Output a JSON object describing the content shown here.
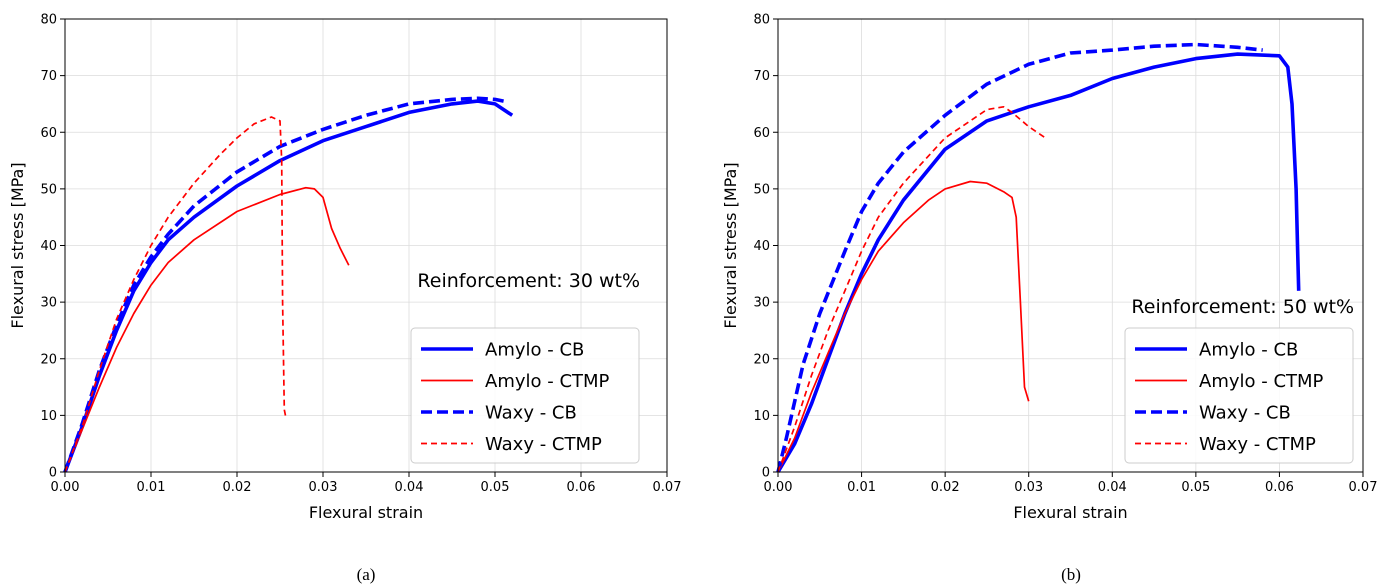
{
  "chart_data": [
    {
      "type": "line",
      "xlabel": "Flexural strain",
      "ylabel": "Flexural stress [MPa]",
      "xlim": [
        0,
        0.07
      ],
      "ylim": [
        0,
        80
      ],
      "xticks": [
        0.0,
        0.01,
        0.02,
        0.03,
        0.04,
        0.05,
        0.06,
        0.07
      ],
      "xtick_labels": [
        "0.00",
        "0.01",
        "0.02",
        "0.03",
        "0.04",
        "0.05",
        "0.06",
        "0.07"
      ],
      "yticks": [
        0,
        10,
        20,
        30,
        40,
        50,
        60,
        70,
        80
      ],
      "ytick_labels": [
        "0",
        "10",
        "20",
        "30",
        "40",
        "50",
        "60",
        "70",
        "80"
      ],
      "grid": true,
      "annotation": "Reinforcement: 30 wt%",
      "legend_position": "lower-right",
      "caption": "(a)",
      "series": [
        {
          "name": "Amylo - CB",
          "color": "#0000ff",
          "style": "solid",
          "width": "thick",
          "x": [
            0,
            0.002,
            0.004,
            0.006,
            0.008,
            0.01,
            0.012,
            0.015,
            0.02,
            0.025,
            0.03,
            0.035,
            0.04,
            0.045,
            0.048,
            0.05,
            0.052
          ],
          "y": [
            0,
            8,
            17,
            25,
            32,
            37,
            41,
            45,
            50.5,
            55,
            58.5,
            61,
            63.5,
            65,
            65.5,
            65,
            63
          ]
        },
        {
          "name": "Amylo - CTMP",
          "color": "#ff0000",
          "style": "solid",
          "width": "thin",
          "x": [
            0,
            0.002,
            0.004,
            0.006,
            0.008,
            0.01,
            0.012,
            0.015,
            0.02,
            0.025,
            0.028,
            0.029,
            0.03,
            0.031,
            0.032,
            0.033
          ],
          "y": [
            0,
            7.5,
            15,
            22,
            28,
            33,
            37,
            41,
            46,
            49,
            50.2,
            50,
            48.5,
            43,
            39.5,
            36.5
          ]
        },
        {
          "name": "Waxy - CB",
          "color": "#0000ff",
          "style": "dashed",
          "width": "thick",
          "x": [
            0,
            0.002,
            0.004,
            0.006,
            0.008,
            0.01,
            0.012,
            0.015,
            0.02,
            0.025,
            0.03,
            0.035,
            0.04,
            0.045,
            0.048,
            0.05,
            0.051
          ],
          "y": [
            0,
            8.5,
            18,
            26,
            33,
            38,
            42,
            47,
            53,
            57.5,
            60.5,
            63,
            65,
            65.8,
            66,
            65.8,
            65.5
          ]
        },
        {
          "name": "Waxy - CTMP",
          "color": "#ff0000",
          "style": "dashed",
          "width": "thin",
          "x": [
            0,
            0.002,
            0.004,
            0.006,
            0.008,
            0.01,
            0.012,
            0.015,
            0.018,
            0.02,
            0.022,
            0.024,
            0.025,
            0.0252,
            0.0253,
            0.0255,
            0.0257
          ],
          "y": [
            0,
            8,
            18,
            27,
            34,
            40,
            45,
            51,
            56,
            59,
            61.5,
            62.7,
            62,
            55,
            30,
            11,
            9.5
          ]
        }
      ]
    },
    {
      "type": "line",
      "xlabel": "Flexural strain",
      "ylabel": "Flexural stress [MPa]",
      "xlim": [
        0,
        0.07
      ],
      "ylim": [
        0,
        80
      ],
      "xticks": [
        0.0,
        0.01,
        0.02,
        0.03,
        0.04,
        0.05,
        0.06,
        0.07
      ],
      "xtick_labels": [
        "0.00",
        "0.01",
        "0.02",
        "0.03",
        "0.04",
        "0.05",
        "0.06",
        "0.07"
      ],
      "yticks": [
        0,
        10,
        20,
        30,
        40,
        50,
        60,
        70,
        80
      ],
      "ytick_labels": [
        "0",
        "10",
        "20",
        "30",
        "40",
        "50",
        "60",
        "70",
        "80"
      ],
      "grid": true,
      "annotation": "Reinforcement: 50 wt%",
      "legend_position": "lower-right",
      "caption": "(b)",
      "series": [
        {
          "name": "Amylo - CB",
          "color": "#0000ff",
          "style": "solid",
          "width": "thick",
          "x": [
            0,
            0.002,
            0.004,
            0.006,
            0.008,
            0.01,
            0.012,
            0.015,
            0.02,
            0.025,
            0.03,
            0.035,
            0.04,
            0.045,
            0.05,
            0.055,
            0.06,
            0.061,
            0.0615,
            0.062,
            0.0622,
            0.0623
          ],
          "y": [
            0,
            5,
            12,
            20,
            28,
            35,
            41,
            48,
            57,
            62,
            64.5,
            66.5,
            69.5,
            71.5,
            73,
            73.8,
            73.5,
            71.5,
            65,
            50,
            38,
            32
          ]
        },
        {
          "name": "Amylo - CTMP",
          "color": "#ff0000",
          "style": "solid",
          "width": "thin",
          "x": [
            0,
            0.002,
            0.004,
            0.006,
            0.008,
            0.01,
            0.012,
            0.015,
            0.018,
            0.02,
            0.023,
            0.025,
            0.027,
            0.028,
            0.0285,
            0.029,
            0.0295,
            0.03
          ],
          "y": [
            0,
            6,
            14,
            21,
            28,
            34,
            39,
            44,
            48,
            50,
            51.3,
            51,
            49.5,
            48.5,
            45,
            30,
            15,
            12.5
          ]
        },
        {
          "name": "Waxy - CB",
          "color": "#0000ff",
          "style": "dashed",
          "width": "thick",
          "x": [
            0,
            0.001,
            0.003,
            0.005,
            0.008,
            0.01,
            0.012,
            0.015,
            0.02,
            0.025,
            0.03,
            0.035,
            0.04,
            0.045,
            0.05,
            0.055,
            0.058
          ],
          "y": [
            0,
            6,
            19,
            28,
            39,
            46,
            51,
            56.5,
            63,
            68.5,
            72,
            74,
            74.5,
            75.2,
            75.5,
            75,
            74.5
          ]
        },
        {
          "name": "Waxy - CTMP",
          "color": "#ff0000",
          "style": "dashed",
          "width": "thin",
          "x": [
            0,
            0.002,
            0.004,
            0.006,
            0.008,
            0.01,
            0.012,
            0.015,
            0.02,
            0.025,
            0.027,
            0.028,
            0.03,
            0.032
          ],
          "y": [
            0,
            8,
            17,
            25,
            32,
            39,
            45,
            51,
            59,
            64,
            64.5,
            63.5,
            61,
            59
          ]
        }
      ]
    }
  ]
}
